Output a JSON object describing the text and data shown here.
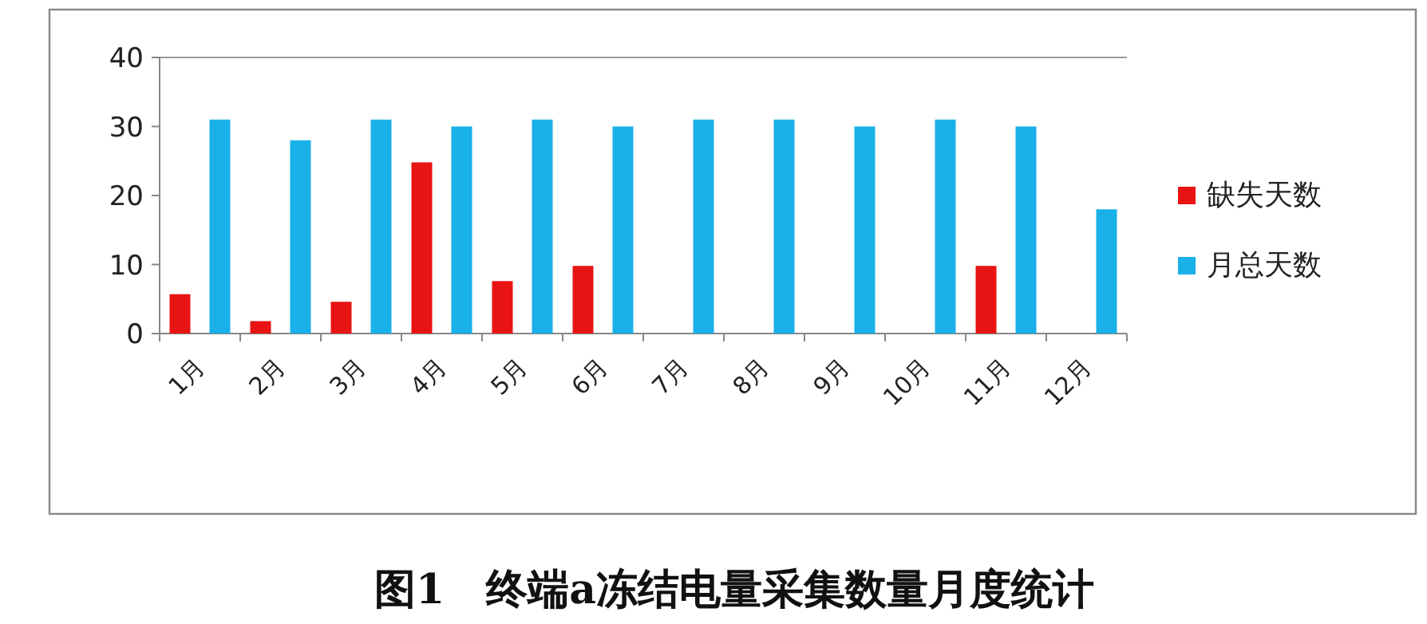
{
  "chart_data": {
    "type": "bar",
    "title": "图1　终端a冻结电量采集数量月度统计",
    "categories": [
      "1月",
      "2月",
      "3月",
      "4月",
      "5月",
      "6月",
      "7月",
      "8月",
      "9月",
      "10月",
      "11月",
      "12月"
    ],
    "series": [
      {
        "name": "缺失天数",
        "color": "#e81414",
        "values": [
          5.7,
          1.8,
          4.6,
          24.8,
          7.6,
          9.8,
          0,
          0,
          0,
          0,
          9.8,
          0
        ]
      },
      {
        "name": "月总天数",
        "color": "#1ab0e8",
        "values": [
          31,
          28,
          31,
          30,
          31,
          30,
          31,
          31,
          30,
          31,
          30,
          18
        ]
      }
    ],
    "ylim": [
      0,
      40
    ],
    "yticks": [
      0,
      10,
      20,
      30,
      40
    ],
    "legend": "right"
  }
}
